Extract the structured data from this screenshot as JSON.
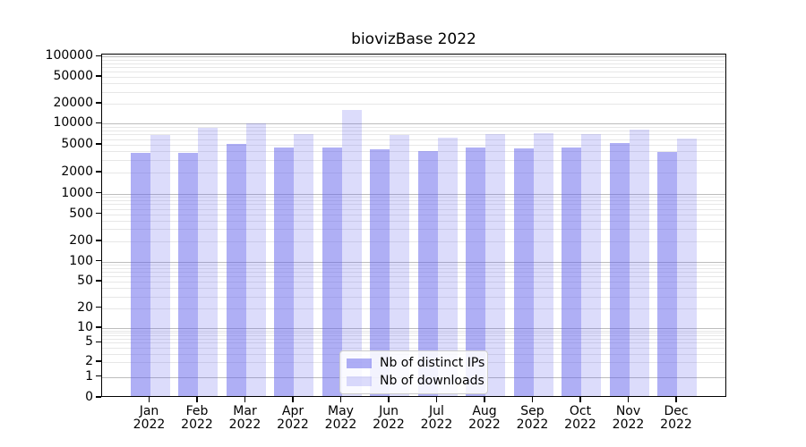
{
  "title": "biovizBase 2022",
  "legend": {
    "items": [
      {
        "label": "Nb of distinct IPs",
        "color": "rgba(96,96,235,0.5)"
      },
      {
        "label": "Nb of downloads",
        "color": "rgba(96,96,235,0.22)"
      }
    ]
  },
  "chart_data": {
    "type": "bar",
    "title": "biovizBase 2022",
    "categories": [
      "Jan 2022",
      "Feb 2022",
      "Mar 2022",
      "Apr 2022",
      "May 2022",
      "Jun 2022",
      "Jul 2022",
      "Aug 2022",
      "Sep 2022",
      "Oct 2022",
      "Nov 2022",
      "Dec 2022"
    ],
    "months": [
      "Jan",
      "Feb",
      "Mar",
      "Apr",
      "May",
      "Jun",
      "Jul",
      "Aug",
      "Sep",
      "Oct",
      "Nov",
      "Dec"
    ],
    "year": "2022",
    "series": [
      {
        "name": "Nb of distinct IPs",
        "values": [
          3850,
          3830,
          5180,
          4600,
          4500,
          4300,
          4060,
          4550,
          4430,
          4520,
          5290,
          3910
        ],
        "color": "rgba(96,96,235,0.5)"
      },
      {
        "name": "Nb of downloads",
        "values": [
          6800,
          8700,
          10100,
          7100,
          16100,
          6900,
          6250,
          7150,
          7300,
          7150,
          8280,
          6070
        ],
        "color": "rgba(96,96,235,0.22)"
      }
    ],
    "xlabel": "",
    "ylabel": "",
    "yscale": "symlog",
    "ylim": [
      0,
      100000
    ],
    "y_ticks": [
      0,
      1,
      2,
      5,
      10,
      20,
      50,
      100,
      200,
      500,
      1000,
      2000,
      5000,
      10000,
      20000,
      50000,
      100000
    ],
    "grid": true,
    "legend_position": "lower center"
  }
}
